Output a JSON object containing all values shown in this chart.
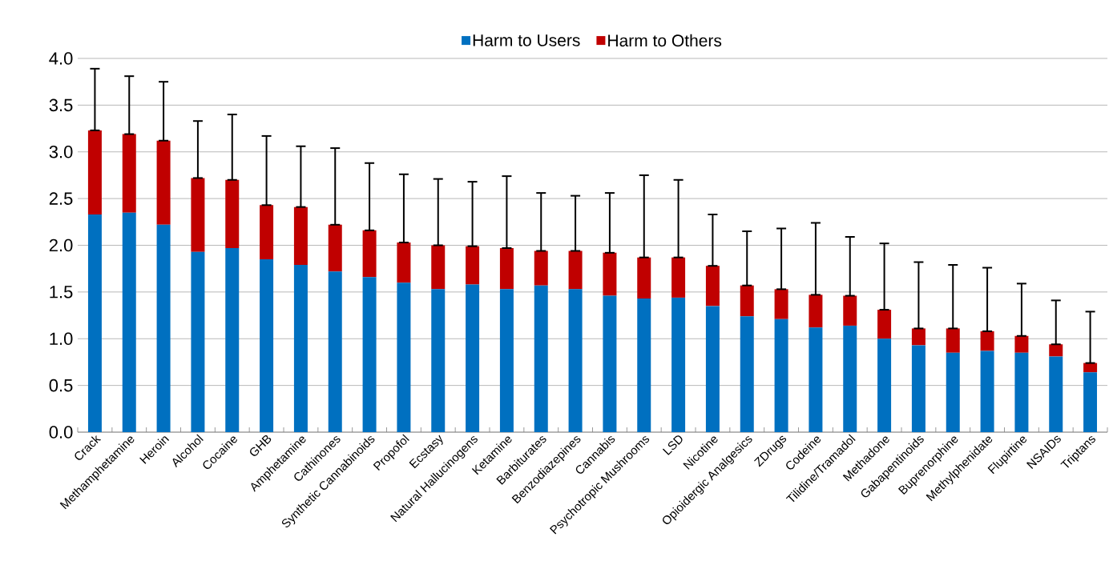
{
  "chart_data": {
    "type": "bar",
    "stacked": true,
    "categories": [
      "Crack",
      "Methamphetamine",
      "Heroin",
      "Alcohol",
      "Cocaine",
      "GHB",
      "Amphetamine",
      "Cathinones",
      "Synthetic Cannabinoids",
      "Propofol",
      "Ecstasy",
      "Natural Hallucinogens",
      "Ketamine",
      "Barbiturates",
      "Benzodiazepines",
      "Cannabis",
      "Psychotropic Mushrooms",
      "LSD",
      "Nicotine",
      "Opioidergic Analgesics",
      "ZDrugs",
      "Codeine",
      "Tilidine/Tramadol",
      "Methadone",
      "Gabapentinoids",
      "Buprenorphine",
      "Methylphenidate",
      "Flupirtine",
      "NSAIDs",
      "Triptans"
    ],
    "series": [
      {
        "name": "Harm to Users",
        "color": "#0070c0",
        "values": [
          2.33,
          2.35,
          2.22,
          1.93,
          1.97,
          1.85,
          1.79,
          1.72,
          1.66,
          1.6,
          1.53,
          1.58,
          1.53,
          1.57,
          1.53,
          1.46,
          1.43,
          1.44,
          1.35,
          1.24,
          1.21,
          1.12,
          1.14,
          1.0,
          0.93,
          0.85,
          0.87,
          0.85,
          0.81,
          0.64
        ]
      },
      {
        "name": "Harm to Others",
        "color": "#c00000",
        "values": [
          0.9,
          0.84,
          0.9,
          0.79,
          0.73,
          0.58,
          0.62,
          0.5,
          0.5,
          0.43,
          0.47,
          0.41,
          0.44,
          0.37,
          0.41,
          0.46,
          0.44,
          0.43,
          0.43,
          0.33,
          0.32,
          0.35,
          0.32,
          0.31,
          0.18,
          0.26,
          0.21,
          0.18,
          0.13,
          0.1
        ],
        "errors": [
          [
            3.23,
            3.89
          ],
          [
            3.19,
            3.81
          ],
          [
            3.12,
            3.75
          ],
          [
            2.72,
            3.33
          ],
          [
            2.7,
            3.4
          ],
          [
            2.43,
            3.17
          ],
          [
            2.41,
            3.06
          ],
          [
            2.22,
            3.04
          ],
          [
            2.16,
            2.88
          ],
          [
            2.03,
            2.76
          ],
          [
            2.0,
            2.71
          ],
          [
            1.99,
            2.68
          ],
          [
            1.97,
            2.74
          ],
          [
            1.94,
            2.56
          ],
          [
            1.94,
            2.53
          ],
          [
            1.92,
            2.56
          ],
          [
            1.87,
            2.75
          ],
          [
            1.87,
            2.7
          ],
          [
            1.78,
            2.33
          ],
          [
            1.57,
            2.15
          ],
          [
            1.53,
            2.18
          ],
          [
            1.47,
            2.24
          ],
          [
            1.46,
            2.09
          ],
          [
            1.31,
            2.02
          ],
          [
            1.11,
            1.82
          ],
          [
            1.11,
            1.79
          ],
          [
            1.08,
            1.76
          ],
          [
            1.03,
            1.59
          ],
          [
            0.94,
            1.41
          ],
          [
            0.74,
            1.29
          ]
        ]
      }
    ],
    "ylim": [
      0,
      4.0
    ],
    "yticks": [
      {
        "value": 0,
        "label": "0.0"
      },
      {
        "value": 0.5,
        "label": "0.5"
      },
      {
        "value": 1,
        "label": "1.0"
      },
      {
        "value": 1.5,
        "label": "1.5"
      },
      {
        "value": 2,
        "label": "2.0"
      },
      {
        "value": 2.5,
        "label": "2.5"
      },
      {
        "value": 3,
        "label": "3.0"
      },
      {
        "value": 3.5,
        "label": "3.5"
      },
      {
        "value": 4,
        "label": "4.0"
      }
    ],
    "grid": "y",
    "legend": "top"
  }
}
